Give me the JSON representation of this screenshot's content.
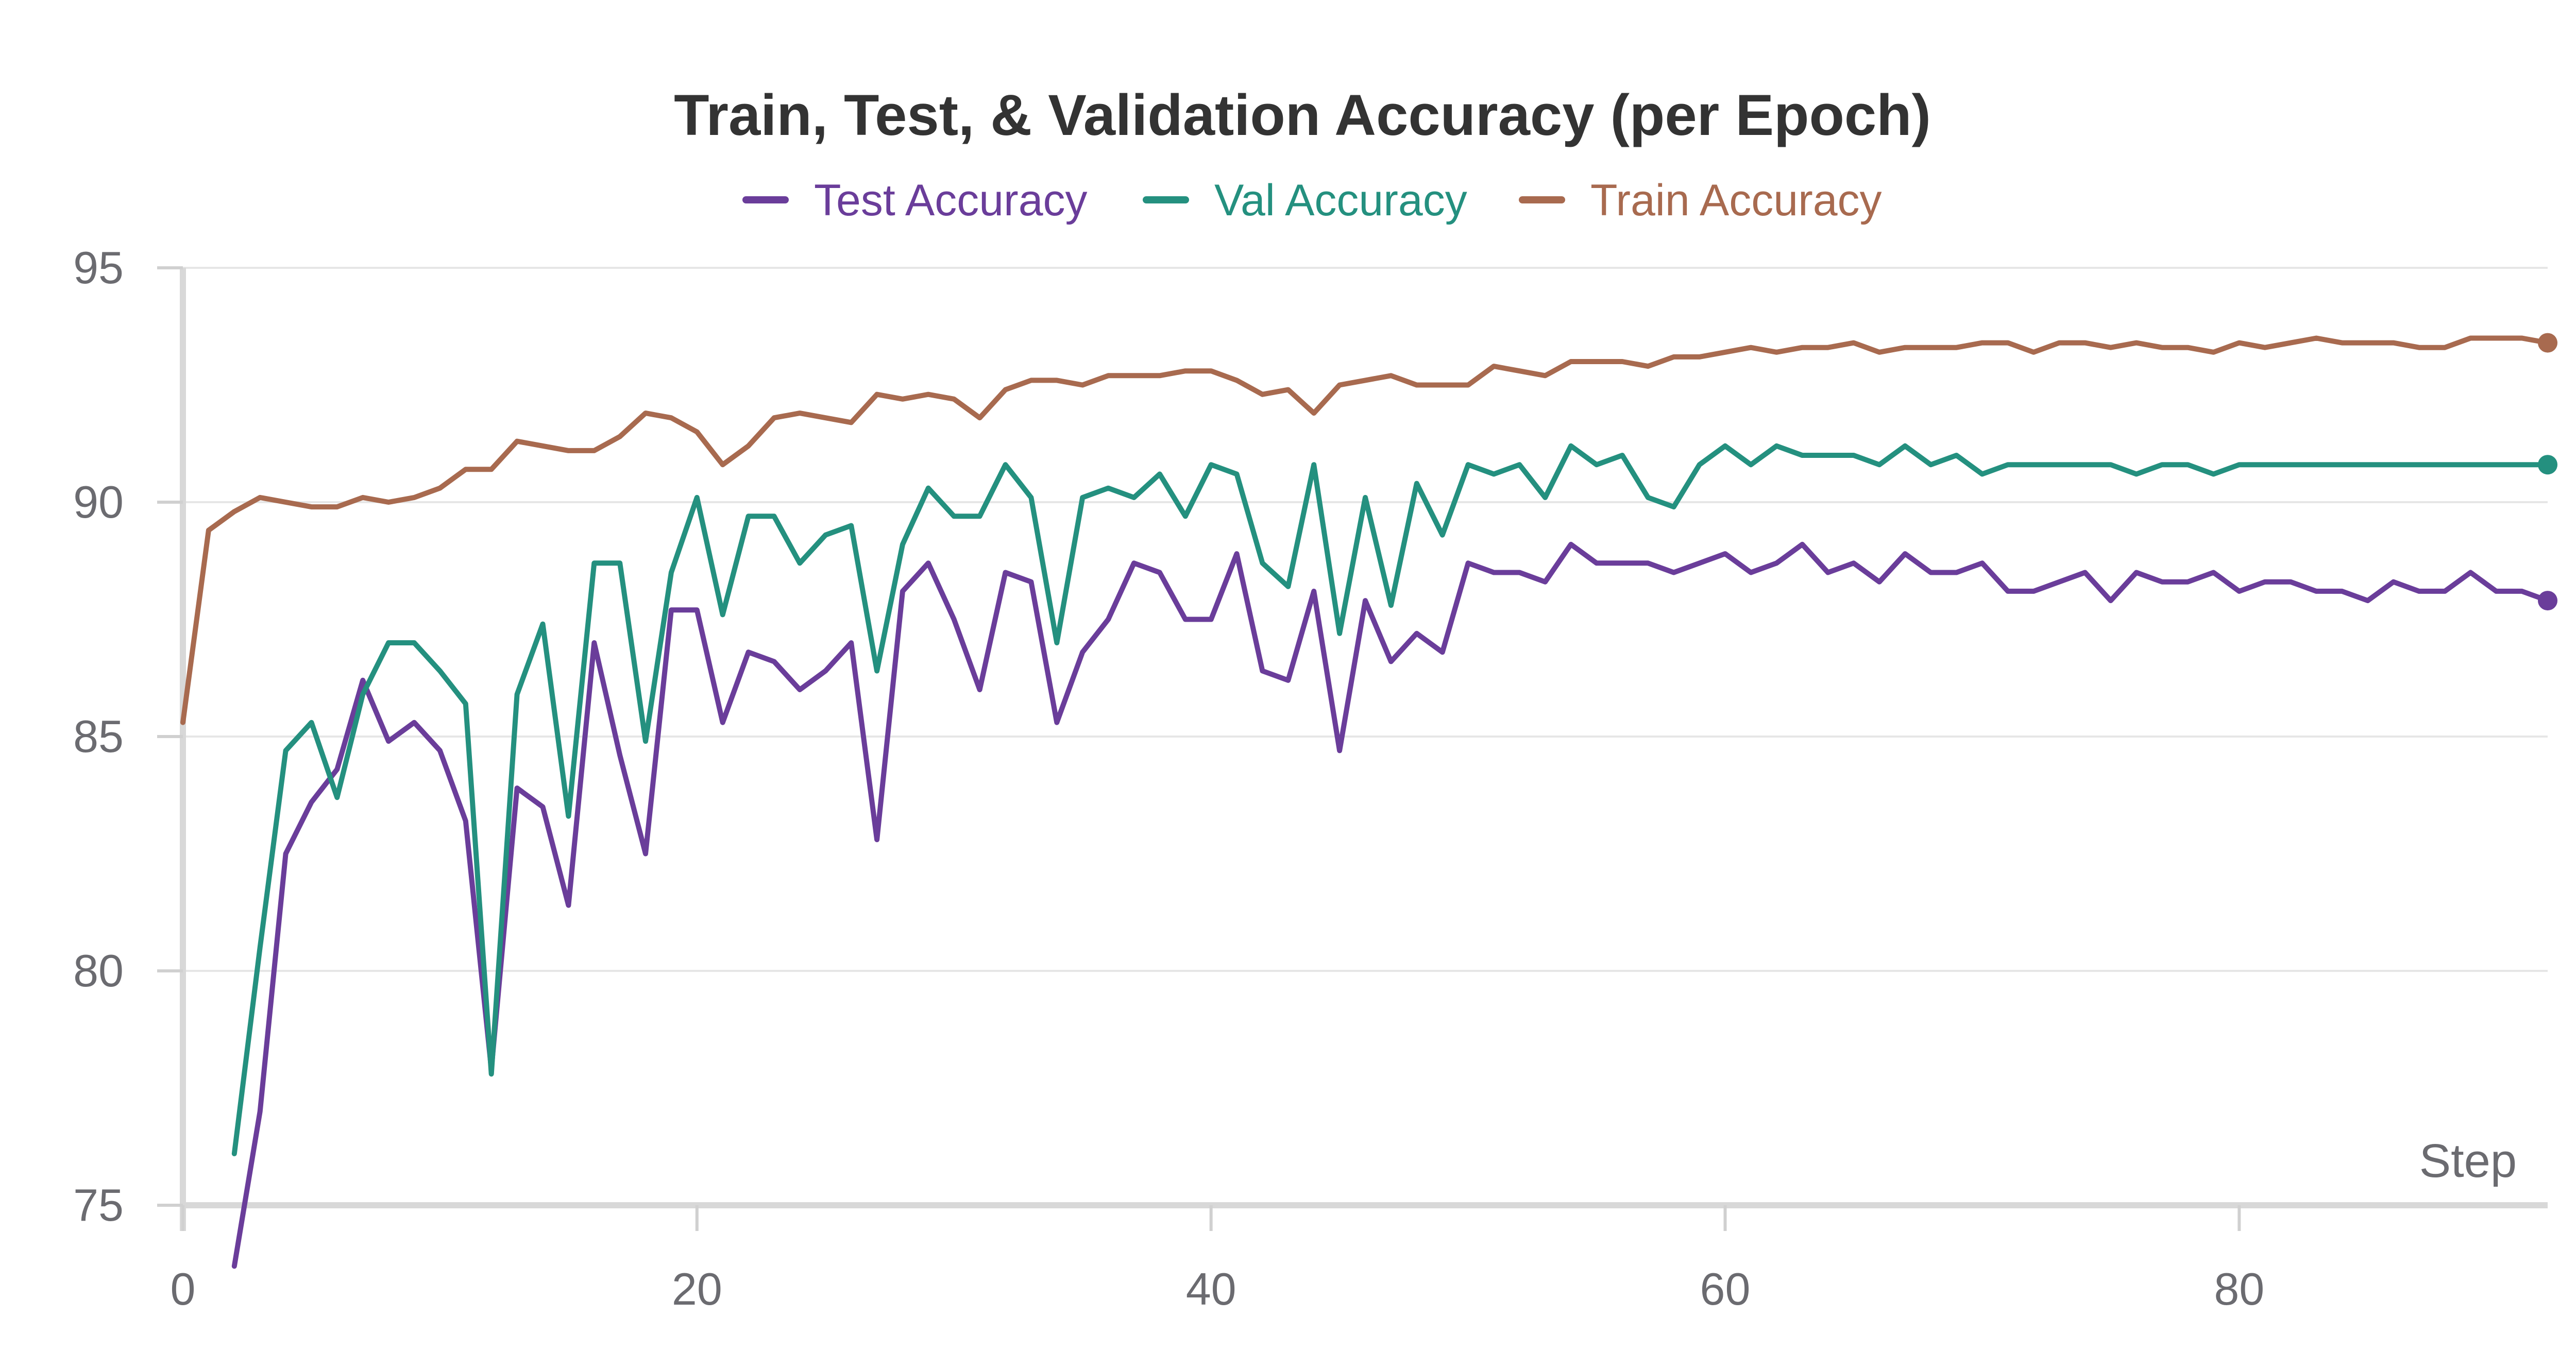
{
  "chart_data": {
    "type": "line",
    "title": "Train, Test, & Validation Accuracy (per Epoch)",
    "xlabel": "Step",
    "ylabel": "",
    "xlim": [
      0,
      92
    ],
    "ylim": [
      75,
      95
    ],
    "xticks": [
      0,
      20,
      40,
      60,
      80
    ],
    "yticks": [
      75,
      80,
      85,
      90,
      95
    ],
    "grid": true,
    "legend_position": "top-center",
    "series": [
      {
        "name": "Test Accuracy",
        "color": "#6a3d9a",
        "values": [
          null,
          null,
          73.7,
          77.0,
          82.5,
          83.6,
          84.3,
          86.2,
          84.9,
          85.3,
          84.7,
          83.2,
          77.9,
          83.9,
          83.5,
          81.4,
          87.0,
          84.6,
          82.5,
          87.7,
          87.7,
          85.3,
          86.8,
          86.6,
          86.0,
          86.4,
          87.0,
          82.8,
          88.1,
          88.7,
          87.5,
          86.0,
          88.5,
          88.3,
          85.3,
          86.8,
          87.5,
          88.7,
          88.5,
          87.5,
          87.5,
          88.9,
          86.4,
          86.2,
          88.1,
          84.7,
          87.9,
          86.6,
          87.2,
          86.8,
          88.7,
          88.5,
          88.5,
          88.3,
          89.1,
          88.7,
          88.7,
          88.7,
          88.5,
          88.7,
          88.9,
          88.5,
          88.7,
          89.1,
          88.5,
          88.7,
          88.3,
          88.9,
          88.5,
          88.5,
          88.7,
          88.1,
          88.1,
          88.3,
          88.5,
          87.9,
          88.5,
          88.3,
          88.3,
          88.5,
          88.1,
          88.3,
          88.3,
          88.1,
          88.1,
          87.9,
          88.3,
          88.1,
          88.1,
          88.5,
          88.1,
          88.1,
          87.9
        ]
      },
      {
        "name": "Val Accuracy",
        "color": "#24907f",
        "values": [
          null,
          null,
          76.1,
          80.5,
          84.7,
          85.3,
          83.7,
          85.9,
          87.0,
          87.0,
          86.4,
          85.7,
          77.8,
          85.9,
          87.4,
          83.3,
          88.7,
          88.7,
          84.9,
          88.5,
          90.1,
          87.6,
          89.7,
          89.7,
          88.7,
          89.3,
          89.5,
          86.4,
          89.1,
          90.3,
          89.7,
          89.7,
          90.8,
          90.1,
          87.0,
          90.1,
          90.3,
          90.1,
          90.6,
          89.7,
          90.8,
          90.6,
          88.7,
          88.2,
          90.8,
          87.2,
          90.1,
          87.8,
          90.4,
          89.3,
          90.8,
          90.6,
          90.8,
          90.1,
          91.2,
          90.8,
          91.0,
          90.1,
          89.9,
          90.8,
          91.2,
          90.8,
          91.2,
          91.0,
          91.0,
          91.0,
          90.8,
          91.2,
          90.8,
          91.0,
          90.6,
          90.8,
          90.8,
          90.8,
          90.8,
          90.8,
          90.6,
          90.8,
          90.8,
          90.6,
          90.8,
          90.8,
          90.8,
          90.8,
          90.8,
          90.8,
          90.8,
          90.8,
          90.8,
          90.8,
          90.8,
          90.8,
          90.8
        ]
      },
      {
        "name": "Train Accuracy",
        "color": "#a86a4f",
        "values": [
          85.3,
          89.4,
          89.8,
          90.1,
          90.0,
          89.9,
          89.9,
          90.1,
          90.0,
          90.1,
          90.3,
          90.7,
          90.7,
          91.3,
          91.2,
          91.1,
          91.1,
          91.4,
          91.9,
          91.8,
          91.5,
          90.8,
          91.2,
          91.8,
          91.9,
          91.8,
          91.7,
          92.3,
          92.2,
          92.3,
          92.2,
          91.8,
          92.4,
          92.6,
          92.6,
          92.5,
          92.7,
          92.7,
          92.7,
          92.8,
          92.8,
          92.6,
          92.3,
          92.4,
          91.9,
          92.5,
          92.6,
          92.7,
          92.5,
          92.5,
          92.5,
          92.9,
          92.8,
          92.7,
          93.0,
          93.0,
          93.0,
          92.9,
          93.1,
          93.1,
          93.2,
          93.3,
          93.2,
          93.3,
          93.3,
          93.4,
          93.2,
          93.3,
          93.3,
          93.3,
          93.4,
          93.4,
          93.2,
          93.4,
          93.4,
          93.3,
          93.4,
          93.3,
          93.3,
          93.2,
          93.4,
          93.3,
          93.4,
          93.5,
          93.4,
          93.4,
          93.4,
          93.3,
          93.3,
          93.5,
          93.5,
          93.5,
          93.4
        ]
      }
    ]
  }
}
